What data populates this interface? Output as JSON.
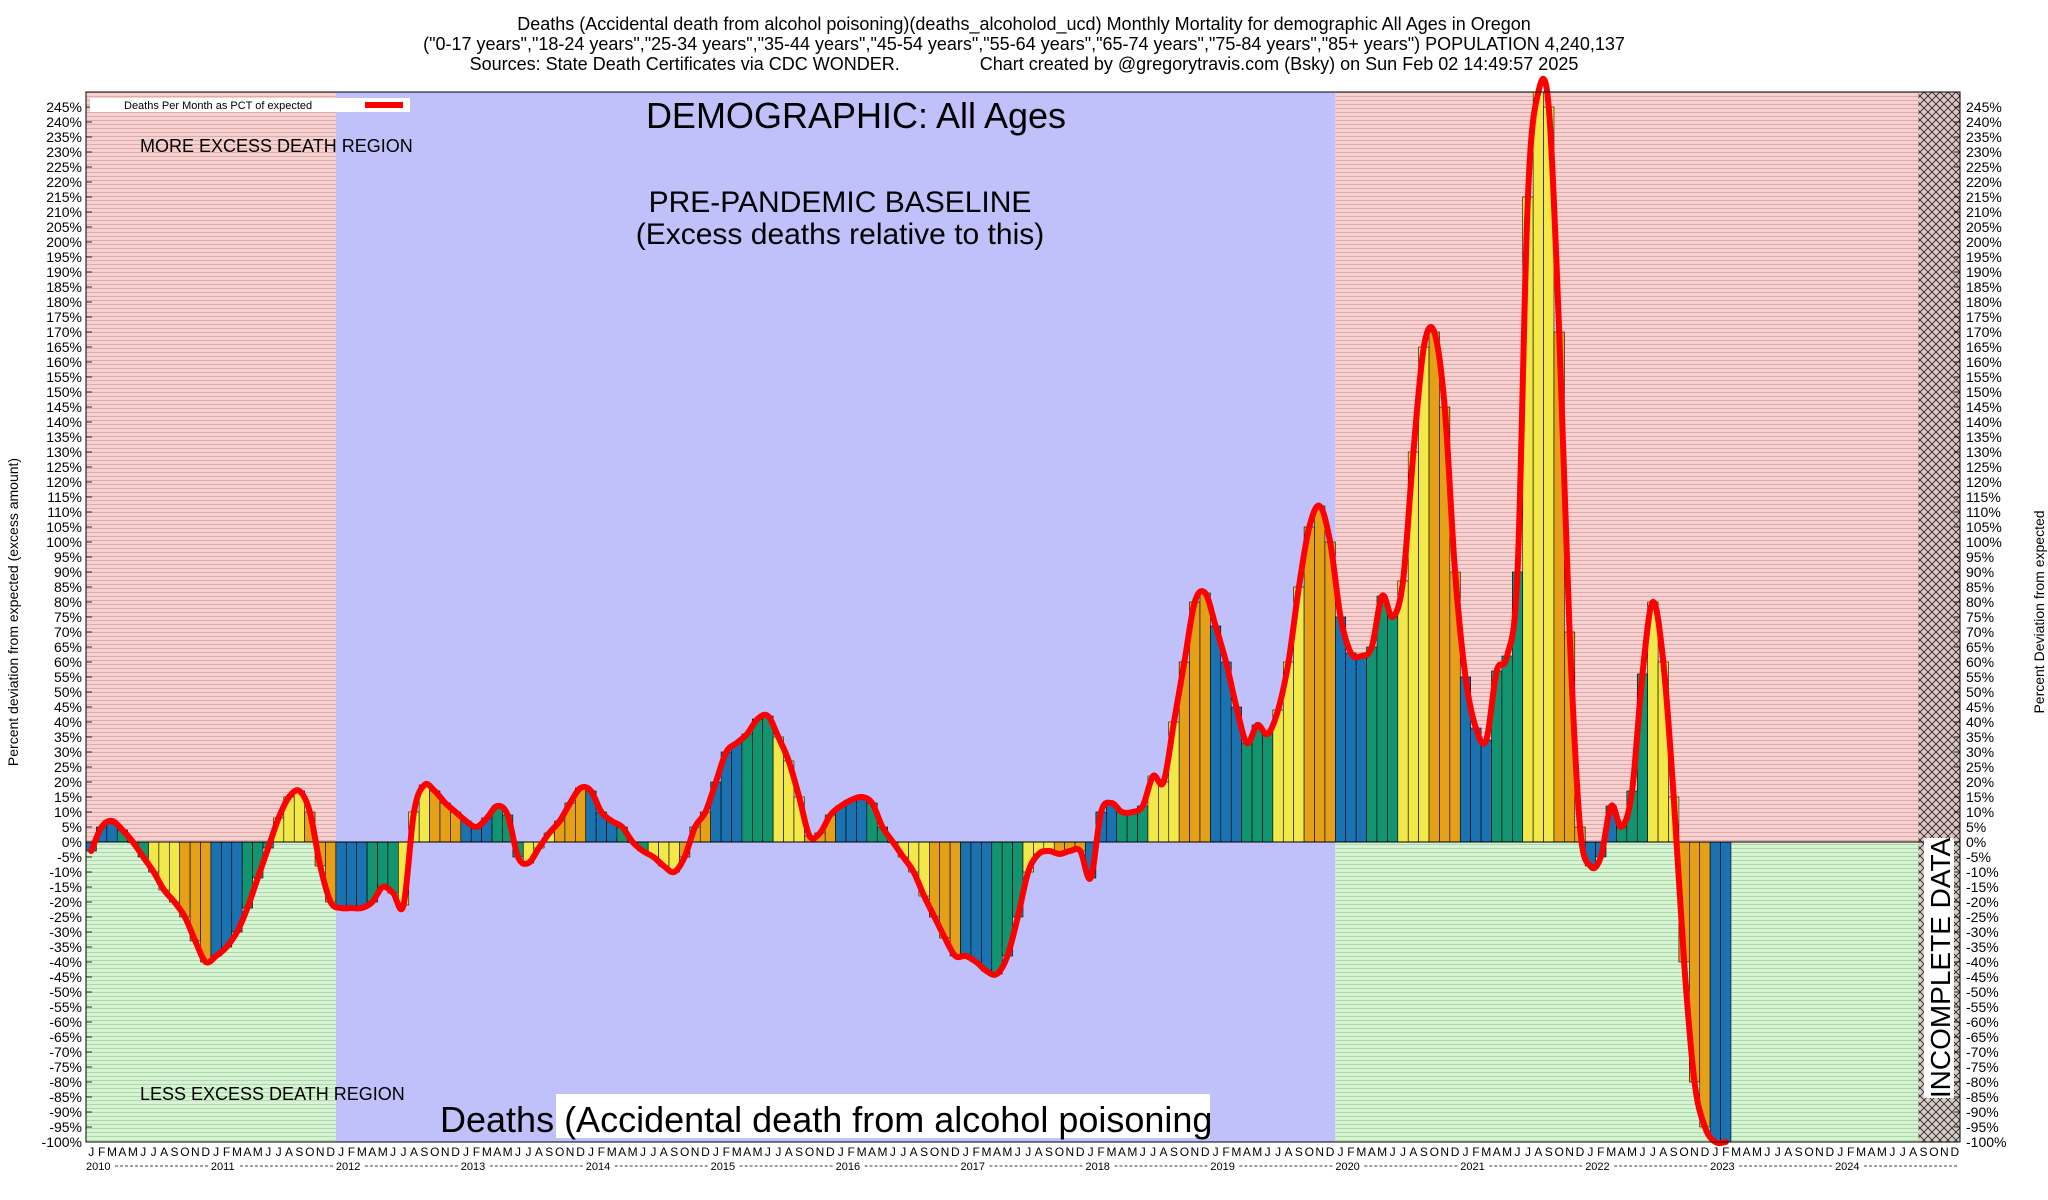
{
  "title": {
    "line1": "Deaths (Accidental death from alcohol poisoning)(deaths_alcoholod_ucd) Monthly Mortality for demographic All Ages in Oregon",
    "line2": "(\"0-17 years\",\"18-24 years\",\"25-34 years\",\"35-44 years\",\"45-54 years\",\"55-64 years\",\"65-74 years\",\"75-84 years\",\"85+ years\") POPULATION 4,240,137",
    "line3": "Sources: State Death Certificates via CDC WONDER.                Chart created by @gregorytravis.com (Bsky) on Sun Feb 02 14:49:57 2025"
  },
  "annotations": {
    "demographic": "DEMOGRAPHIC: All Ages",
    "baseline_line1": "PRE-PANDEMIC BASELINE",
    "baseline_line2": "(Excess deaths relative to this)",
    "more_excess": "MORE EXCESS DEATH REGION",
    "less_excess": "LESS EXCESS DEATH REGION",
    "bottom_title": "Deaths (Accidental death from alcohol poisoning",
    "incomplete": "INCOMPLETE DATA"
  },
  "colors": {
    "more_excess_bg": "#eec4c4",
    "less_excess_bg": "#c8ebc4",
    "baseline_bg": "#c0c0fa",
    "line": "#ff0000",
    "bar_palette": [
      "#1a72b0",
      "#139470",
      "#f3e84a",
      "#e4a018"
    ]
  },
  "chart_data": {
    "type": "bar",
    "title": "DEMOGRAPHIC: All Ages",
    "ylabel_left": "Percent deviation from expected (excess amount)",
    "ylabel_right": "Percent Deviation from expected",
    "legend": "Deaths Per Month as PCT of expected",
    "legend_position": "top-left",
    "ylim": [
      -100,
      250
    ],
    "y_tick_step": 5,
    "y_tick_format": "{v}%",
    "x_start": "2010-01",
    "month_letters": [
      "J",
      "F",
      "M",
      "A",
      "M",
      "J",
      "J",
      "A",
      "S",
      "O",
      "N",
      "D"
    ],
    "years": [
      "2010",
      "2011",
      "2012",
      "2013",
      "2014",
      "2015",
      "2016",
      "2017",
      "2018",
      "2019",
      "2020",
      "2021",
      "2022",
      "2023",
      "2024"
    ],
    "baseline_period": [
      "2012-01",
      "2019-12"
    ],
    "incomplete_from": "2024-09",
    "series": [
      {
        "name": "Deaths Per Month as PCT of expected",
        "values": [
          -3,
          5,
          7,
          4,
          0,
          -5,
          -10,
          -16,
          -20,
          -25,
          -33,
          -40,
          -38,
          -35,
          -30,
          -22,
          -12,
          -2,
          8,
          15,
          17,
          10,
          -8,
          -20,
          -22,
          -22,
          -22,
          -20,
          -15,
          -17,
          -21,
          10,
          19,
          17,
          13,
          10,
          7,
          5,
          8,
          12,
          9,
          -5,
          -7,
          -2,
          3,
          7,
          13,
          18,
          17,
          10,
          7,
          5,
          0,
          -3,
          -5,
          -8,
          -10,
          -5,
          5,
          10,
          20,
          30,
          33,
          36,
          41,
          42,
          35,
          27,
          15,
          2,
          3,
          9,
          12,
          14,
          15,
          13,
          5,
          0,
          -5,
          -10,
          -18,
          -25,
          -32,
          -38,
          -38,
          -40,
          -43,
          -44,
          -38,
          -25,
          -10,
          -4,
          -3,
          -4,
          -3,
          -3,
          -12,
          10,
          13,
          10,
          10,
          12,
          22,
          20,
          40,
          60,
          80,
          83,
          72,
          60,
          45,
          33,
          39,
          36,
          44,
          60,
          85,
          105,
          112,
          100,
          75,
          63,
          62,
          65,
          82,
          75,
          87,
          130,
          165,
          170,
          145,
          90,
          55,
          38,
          34,
          57,
          62,
          90,
          215,
          250,
          245,
          170,
          70,
          5,
          -8,
          -5,
          12,
          5,
          17,
          56,
          80,
          60,
          15,
          -40,
          -80,
          -95,
          -100,
          -100
        ]
      }
    ]
  }
}
